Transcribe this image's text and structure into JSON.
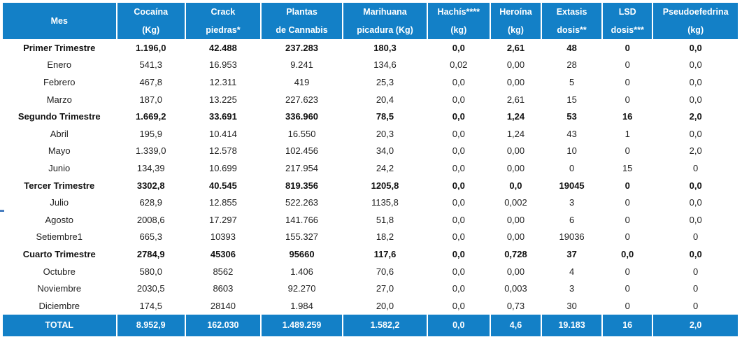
{
  "headers": [
    [
      "Mes"
    ],
    [
      "Cocaína",
      "(Kg)"
    ],
    [
      "Crack",
      "piedras*"
    ],
    [
      "Plantas",
      "de Cannabis"
    ],
    [
      "Marihuana",
      "picadura (Kg)"
    ],
    [
      "Hachís****",
      "(kg)"
    ],
    [
      "Heroína",
      "(kg)"
    ],
    [
      "Extasis",
      "dosis**"
    ],
    [
      "LSD",
      "dosis***"
    ],
    [
      "Pseudoefedrina",
      "(kg)"
    ]
  ],
  "rows": [
    {
      "quarter": true,
      "cells": [
        "Primer Trimestre",
        "1.196,0",
        "42.488",
        "237.283",
        "180,3",
        "0,0",
        "2,61",
        "48",
        "0",
        "0,0"
      ]
    },
    {
      "quarter": false,
      "cells": [
        "Enero",
        "541,3",
        "16.953",
        "9.241",
        "134,6",
        "0,02",
        "0,00",
        "28",
        "0",
        "0,0"
      ]
    },
    {
      "quarter": false,
      "cells": [
        "Febrero",
        "467,8",
        "12.311",
        "419",
        "25,3",
        "0,0",
        "0,00",
        "5",
        "0",
        "0,0"
      ]
    },
    {
      "quarter": false,
      "cells": [
        "Marzo",
        "187,0",
        "13.225",
        "227.623",
        "20,4",
        "0,0",
        "2,61",
        "15",
        "0",
        "0,0"
      ]
    },
    {
      "quarter": true,
      "cells": [
        "Segundo Trimestre",
        "1.669,2",
        "33.691",
        "336.960",
        "78,5",
        "0,0",
        "1,24",
        "53",
        "16",
        "2,0"
      ]
    },
    {
      "quarter": false,
      "cells": [
        "Abril",
        "195,9",
        "10.414",
        "16.550",
        "20,3",
        "0,0",
        "1,24",
        "43",
        "1",
        "0,0"
      ]
    },
    {
      "quarter": false,
      "cells": [
        "Mayo",
        "1.339,0",
        "12.578",
        "102.456",
        "34,0",
        "0,0",
        "0,00",
        "10",
        "0",
        "2,0"
      ]
    },
    {
      "quarter": false,
      "cells": [
        "Junio",
        "134,39",
        "10.699",
        "217.954",
        "24,2",
        "0,0",
        "0,00",
        "0",
        "15",
        "0"
      ]
    },
    {
      "quarter": true,
      "cells": [
        "Tercer Trimestre",
        "3302,8",
        "40.545",
        "819.356",
        "1205,8",
        "0,0",
        "0,0",
        "19045",
        "0",
        "0,0"
      ]
    },
    {
      "quarter": false,
      "cells": [
        "Julio",
        "628,9",
        "12.855",
        "522.263",
        "1135,8",
        "0,0",
        "0,002",
        "3",
        "0",
        "0,0"
      ]
    },
    {
      "quarter": false,
      "cells": [
        "Agosto",
        "2008,6",
        "17.297",
        "141.766",
        "51,8",
        "0,0",
        "0,00",
        "6",
        "0",
        "0,0"
      ]
    },
    {
      "quarter": false,
      "cells": [
        "Setiembre1",
        "665,3",
        "10393",
        "155.327",
        "18,2",
        "0,0",
        "0,00",
        "19036",
        "0",
        "0"
      ]
    },
    {
      "quarter": true,
      "cells": [
        "Cuarto Trimestre",
        "2784,9",
        "45306",
        "95660",
        "117,6",
        "0,0",
        "0,728",
        "37",
        "0,0",
        "0,0"
      ]
    },
    {
      "quarter": false,
      "cells": [
        "Octubre",
        "580,0",
        "8562",
        "1.406",
        "70,6",
        "0,0",
        "0,00",
        "4",
        "0",
        "0"
      ]
    },
    {
      "quarter": false,
      "cells": [
        "Noviembre",
        "2030,5",
        "8603",
        "92.270",
        "27,0",
        "0,0",
        "0,003",
        "3",
        "0",
        "0"
      ]
    },
    {
      "quarter": false,
      "cells": [
        "Diciembre",
        "174,5",
        "28140",
        "1.984",
        "20,0",
        "0,0",
        "0,73",
        "30",
        "0",
        "0"
      ]
    }
  ],
  "total": [
    "TOTAL",
    "8.952,9",
    "162.030",
    "1.489.259",
    "1.582,2",
    "0,0",
    "4,6",
    "19.183",
    "16",
    "2,0"
  ],
  "colors": {
    "header_bg": "#1380c7",
    "header_text": "#ffffff"
  }
}
